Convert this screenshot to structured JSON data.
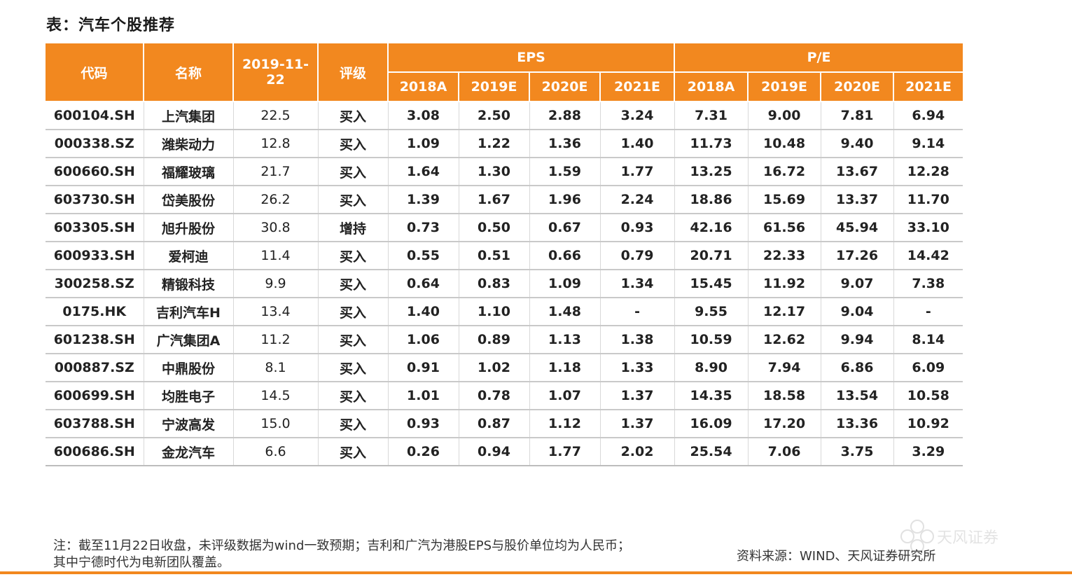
{
  "title": "表：汽车个股推荐",
  "table": {
    "headers": {
      "code": "代码",
      "name": "名称",
      "date": "2019-11-22",
      "rating": "评级",
      "eps": "EPS",
      "pe": "P/E",
      "years": [
        "2018A",
        "2019E",
        "2020E",
        "2021E"
      ]
    },
    "rows": [
      {
        "code": "600104.SH",
        "name": "上汽集团",
        "price": "22.5",
        "rating": "买入",
        "eps": [
          "3.08",
          "2.50",
          "2.88",
          "3.24"
        ],
        "pe": [
          "7.31",
          "9.00",
          "7.81",
          "6.94"
        ]
      },
      {
        "code": "000338.SZ",
        "name": "潍柴动力",
        "price": "12.8",
        "rating": "买入",
        "eps": [
          "1.09",
          "1.22",
          "1.36",
          "1.40"
        ],
        "pe": [
          "11.73",
          "10.48",
          "9.40",
          "9.14"
        ]
      },
      {
        "code": "600660.SH",
        "name": "福耀玻璃",
        "price": "21.7",
        "rating": "买入",
        "eps": [
          "1.64",
          "1.30",
          "1.59",
          "1.77"
        ],
        "pe": [
          "13.25",
          "16.72",
          "13.67",
          "12.28"
        ]
      },
      {
        "code": "603730.SH",
        "name": "岱美股份",
        "price": "26.2",
        "rating": "买入",
        "eps": [
          "1.39",
          "1.67",
          "1.96",
          "2.24"
        ],
        "pe": [
          "18.86",
          "15.69",
          "13.37",
          "11.70"
        ]
      },
      {
        "code": "603305.SH",
        "name": "旭升股份",
        "price": "30.8",
        "rating": "增持",
        "eps": [
          "0.73",
          "0.50",
          "0.67",
          "0.93"
        ],
        "pe": [
          "42.16",
          "61.56",
          "45.94",
          "33.10"
        ]
      },
      {
        "code": "600933.SH",
        "name": "爱柯迪",
        "price": "11.4",
        "rating": "买入",
        "eps": [
          "0.55",
          "0.51",
          "0.66",
          "0.79"
        ],
        "pe": [
          "20.71",
          "22.33",
          "17.26",
          "14.42"
        ]
      },
      {
        "code": "300258.SZ",
        "name": "精锻科技",
        "price": "9.9",
        "rating": "买入",
        "eps": [
          "0.64",
          "0.83",
          "1.09",
          "1.34"
        ],
        "pe": [
          "15.45",
          "11.92",
          "9.07",
          "7.38"
        ]
      },
      {
        "code": "0175.HK",
        "name": "吉利汽车H",
        "price": "13.4",
        "rating": "买入",
        "eps": [
          "1.40",
          "1.10",
          "1.48",
          "-"
        ],
        "pe": [
          "9.55",
          "12.17",
          "9.04",
          "-"
        ]
      },
      {
        "code": "601238.SH",
        "name": "广汽集团A",
        "price": "11.2",
        "rating": "买入",
        "eps": [
          "1.06",
          "0.89",
          "1.13",
          "1.38"
        ],
        "pe": [
          "10.59",
          "12.62",
          "9.94",
          "8.14"
        ]
      },
      {
        "code": "000887.SZ",
        "name": "中鼎股份",
        "price": "8.1",
        "rating": "买入",
        "eps": [
          "0.91",
          "1.02",
          "1.18",
          "1.33"
        ],
        "pe": [
          "8.90",
          "7.94",
          "6.86",
          "6.09"
        ]
      },
      {
        "code": "600699.SH",
        "name": "均胜电子",
        "price": "14.5",
        "rating": "买入",
        "eps": [
          "1.01",
          "0.78",
          "1.07",
          "1.37"
        ],
        "pe": [
          "14.35",
          "18.58",
          "13.54",
          "10.58"
        ]
      },
      {
        "code": "603788.SH",
        "name": "宁波高发",
        "price": "15.0",
        "rating": "买入",
        "eps": [
          "0.93",
          "0.87",
          "1.12",
          "1.37"
        ],
        "pe": [
          "16.09",
          "17.20",
          "13.36",
          "10.92"
        ]
      },
      {
        "code": "600686.SH",
        "name": "金龙汽车",
        "price": "6.6",
        "rating": "买入",
        "eps": [
          "0.26",
          "0.94",
          "1.77",
          "2.02"
        ],
        "pe": [
          "25.54",
          "7.06",
          "3.75",
          "3.29"
        ]
      }
    ]
  },
  "notes": {
    "line1": "注：截至11月22日收盘，未评级数据为wind一致预期；吉利和广汽为港股EPS与股价单位均为人民币；",
    "line2": "其中宁德时代为电新团队覆盖。"
  },
  "source": "资料来源：WIND、天风证券研究所",
  "logo": {
    "text": "天风证券",
    "icon": "flower-logo-icon"
  },
  "colors": {
    "header_bg": "#f2881f",
    "accent": "#f2881f"
  }
}
